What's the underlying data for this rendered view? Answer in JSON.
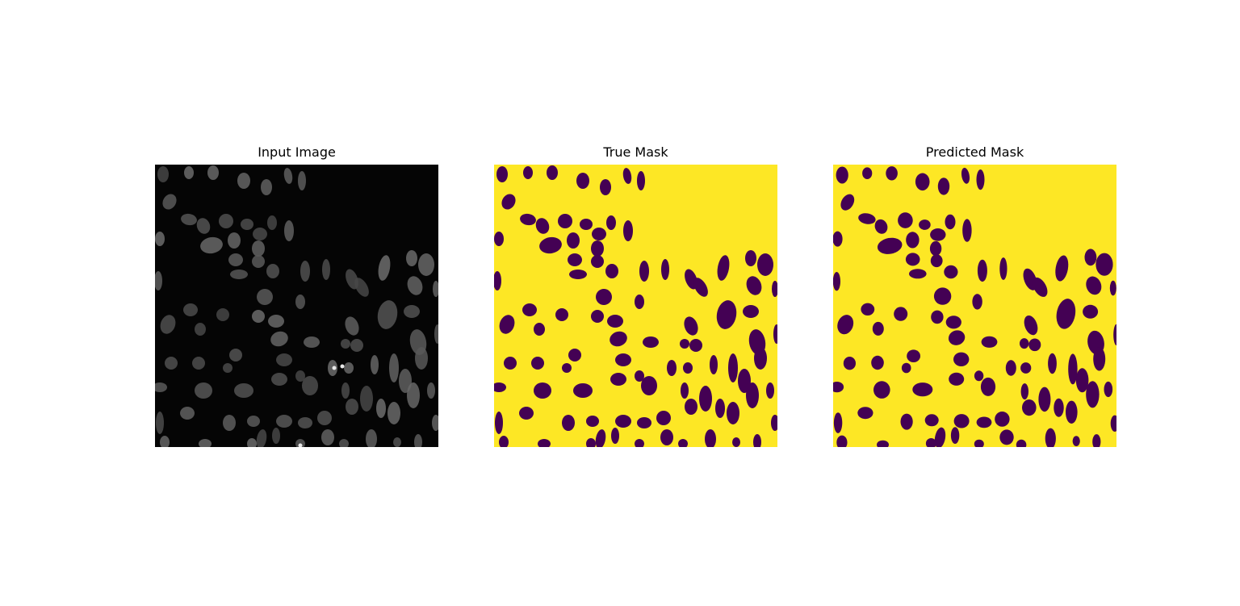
{
  "figure": {
    "panels": [
      {
        "title": "Input Image",
        "kind": "grayscale-micrograph",
        "background_color": "#050505",
        "object_color": "#5a5a5a"
      },
      {
        "title": "True Mask",
        "kind": "binary-mask",
        "background_color": "#fde725",
        "object_color": "#440154"
      },
      {
        "title": "Predicted Mask",
        "kind": "binary-mask",
        "background_color": "#fde725",
        "object_color": "#440154"
      }
    ]
  }
}
